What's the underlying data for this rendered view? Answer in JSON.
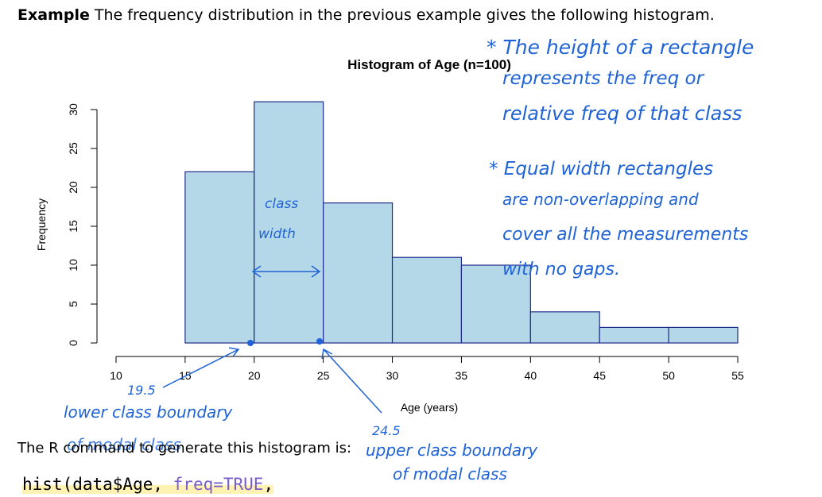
{
  "heading": {
    "bold": "Example",
    "text": " The frequency distribution in the previous example gives the following histogram."
  },
  "r_command_label": "The R command to generate this histogram is:",
  "code": {
    "prefix": "hist(data$Age, ",
    "keyword": "freq=TRUE",
    "suffix": ","
  },
  "chart_data": {
    "type": "bar",
    "title": "Histogram of Age (n=100)",
    "xlabel": "Age (years)",
    "ylabel": "Frequency",
    "bins": [
      {
        "start": 15,
        "end": 20,
        "value": 22
      },
      {
        "start": 20,
        "end": 25,
        "value": 31
      },
      {
        "start": 25,
        "end": 30,
        "value": 18
      },
      {
        "start": 30,
        "end": 35,
        "value": 11
      },
      {
        "start": 35,
        "end": 40,
        "value": 10
      },
      {
        "start": 40,
        "end": 45,
        "value": 4
      },
      {
        "start": 45,
        "end": 50,
        "value": 2
      },
      {
        "start": 50,
        "end": 55,
        "value": 2
      }
    ],
    "xticks": [
      "10",
      "15",
      "20",
      "25",
      "30",
      "35",
      "40",
      "45",
      "50",
      "55"
    ],
    "yticks": [
      "0",
      "5",
      "10",
      "15",
      "20",
      "25",
      "30"
    ],
    "xlim": [
      10,
      55
    ],
    "ylim": [
      0,
      30
    ],
    "bar_fill": "#b5d8e8",
    "bar_stroke": "#1f2a8a",
    "ink_color": "#1f63d6"
  },
  "annotations": {
    "note1_lines": [
      "* The height of a rectangle",
      "represents the freq  or",
      "relative freq of that class"
    ],
    "note2_lines": [
      "* Equal width rectangles",
      "are non-overlapping and",
      "cover all the measurements",
      "with no gaps."
    ],
    "class_width": [
      "class",
      "width"
    ],
    "lower_value": "19.5",
    "lower_label": "lower class boundary",
    "lower_sub": "of modal class",
    "upper_value": "24.5",
    "upper_label": "upper class boundary",
    "upper_sub": "of modal class"
  }
}
